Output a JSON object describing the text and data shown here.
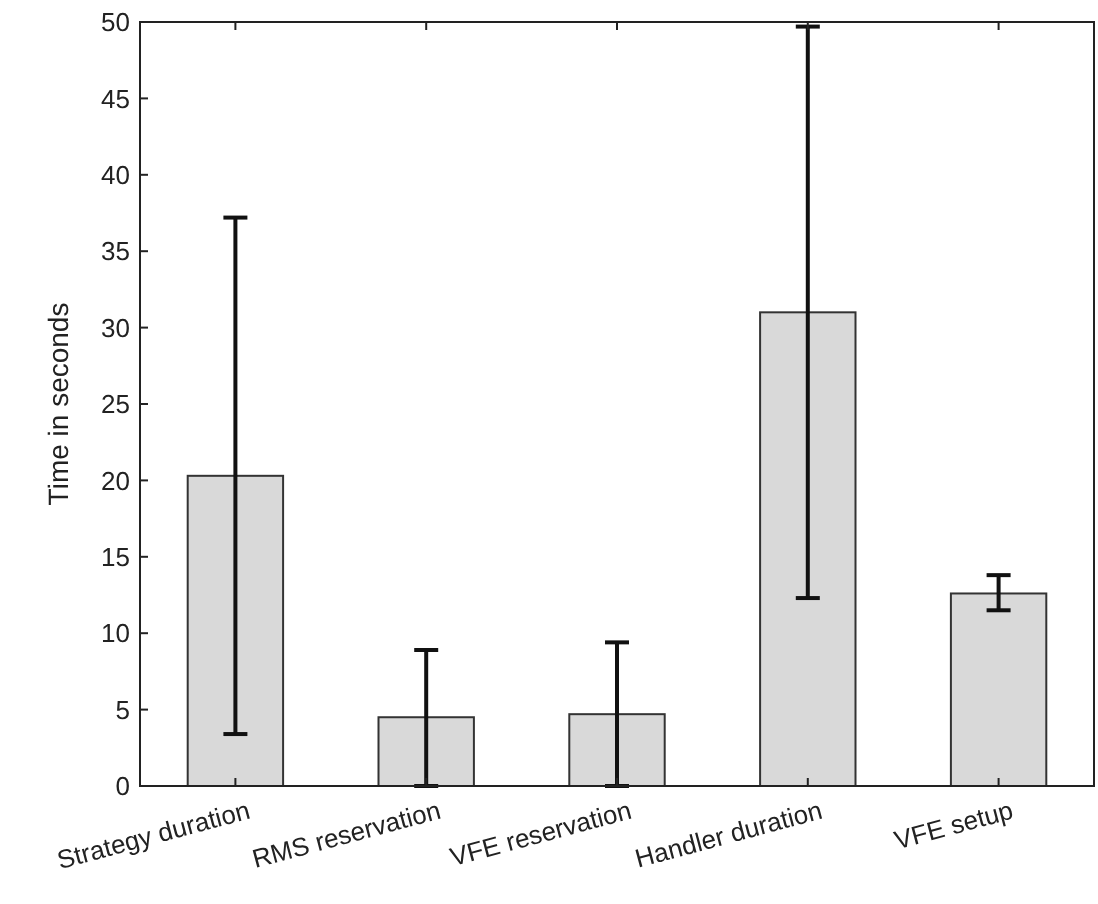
{
  "chart_data": {
    "type": "bar",
    "ylabel": "Time in seconds",
    "categories": [
      "Strategy duration",
      "RMS reservation",
      "VFE reservation",
      "Handler duration",
      "VFE setup"
    ],
    "values": [
      20.3,
      4.5,
      4.7,
      31.0,
      12.6
    ],
    "errors": [
      [
        3.4,
        37.2
      ],
      [
        0,
        8.9
      ],
      [
        0,
        9.4
      ],
      [
        12.3,
        49.7
      ],
      [
        11.5,
        13.8
      ]
    ],
    "color": "#d9d9d9",
    "ylim": [
      0,
      50
    ],
    "yticks": [
      0,
      5,
      10,
      15,
      20,
      25,
      30,
      35,
      40,
      45,
      50
    ],
    "grid": false
  }
}
